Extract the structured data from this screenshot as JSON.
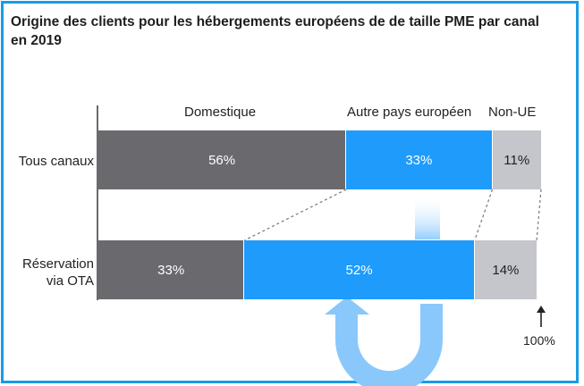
{
  "title": "Origine des clients pour les hébergements européens de de taille PME par canal en 2019",
  "colors": {
    "domestique": "#6a6a6e",
    "europe": "#1e9bfb",
    "non_ue": "#c5c5cc",
    "arrow": "#8ac8fb",
    "border": "#1a9be6"
  },
  "chart_data": {
    "type": "bar",
    "stacked": true,
    "orientation": "horizontal",
    "title": "Origine des clients pour les hébergements européens de de taille PME par canal en 2019",
    "categories": [
      "Tous canaux",
      "Réservation via OTA"
    ],
    "series": [
      {
        "name": "Domestique",
        "values": [
          56,
          33
        ],
        "labels": [
          "56%",
          "33%"
        ]
      },
      {
        "name": "Autre pays européen",
        "values": [
          33,
          52
        ],
        "labels": [
          "33%",
          "52%"
        ]
      },
      {
        "name": "Non-UE",
        "values": [
          11,
          14
        ],
        "labels": [
          "11%",
          "14%"
        ]
      }
    ],
    "xlim": [
      0,
      100
    ],
    "axis_end_label": "100%",
    "legend": "top"
  }
}
